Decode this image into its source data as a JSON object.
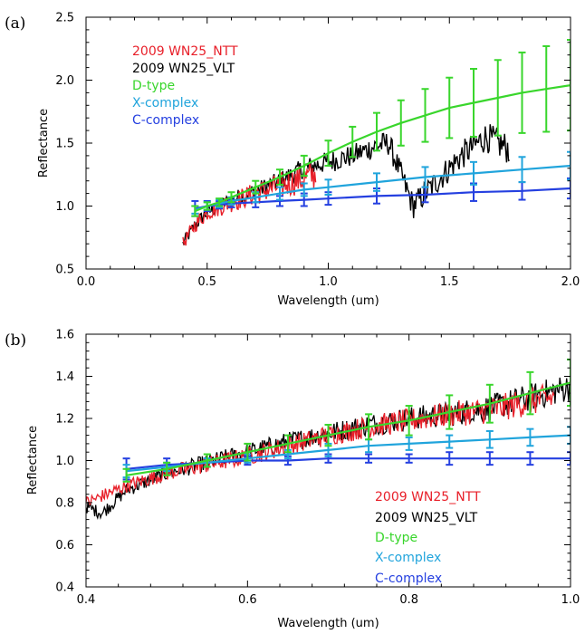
{
  "chart_data": [
    {
      "panel": "(a)",
      "type": "line",
      "xlabel": "Wavelength (um)",
      "ylabel": "Reflectance",
      "xlim": [
        0.0,
        2.0
      ],
      "ylim": [
        0.5,
        2.5
      ],
      "xticks": [
        "0.0",
        "0.5",
        "1.0",
        "1.5",
        "2.0"
      ],
      "yticks": [
        "0.5",
        "1.0",
        "1.5",
        "2.0",
        "2.5"
      ],
      "legend_position": "top-left",
      "series": [
        {
          "name": "2009 WN25_NTT",
          "color": "#e8202a",
          "kind": "noisy",
          "x": [
            0.4,
            0.45,
            0.5,
            0.6,
            0.7,
            0.8,
            0.9,
            0.95
          ],
          "y": [
            0.7,
            0.85,
            0.95,
            1.03,
            1.1,
            1.16,
            1.22,
            1.25
          ]
        },
        {
          "name": "2009 WN25_VLT",
          "color": "#000000",
          "kind": "noisy",
          "x": [
            0.4,
            0.45,
            0.5,
            0.6,
            0.7,
            0.8,
            0.9,
            1.0,
            1.1,
            1.2,
            1.25,
            1.35,
            1.55,
            1.65,
            1.75
          ],
          "y": [
            0.7,
            0.85,
            0.95,
            1.05,
            1.12,
            1.2,
            1.3,
            1.35,
            1.4,
            1.48,
            1.5,
            1.0,
            1.4,
            1.55,
            1.45
          ]
        },
        {
          "name": "D-type",
          "color": "#39d62c",
          "kind": "mean",
          "x": [
            0.45,
            0.5,
            0.55,
            0.6,
            0.7,
            0.8,
            0.9,
            1.0,
            1.1,
            1.2,
            1.3,
            1.4,
            1.5,
            1.6,
            1.7,
            1.8,
            1.9,
            2.0
          ],
          "y": [
            0.96,
            1.0,
            1.03,
            1.07,
            1.15,
            1.23,
            1.32,
            1.42,
            1.51,
            1.59,
            1.66,
            1.72,
            1.78,
            1.82,
            1.86,
            1.9,
            1.93,
            1.96
          ],
          "err": [
            0.04,
            0.03,
            0.03,
            0.04,
            0.05,
            0.06,
            0.08,
            0.1,
            0.12,
            0.15,
            0.18,
            0.21,
            0.24,
            0.27,
            0.3,
            0.32,
            0.34,
            0.36
          ]
        },
        {
          "name": "X-complex",
          "color": "#20a4dc",
          "kind": "mean",
          "x": [
            0.45,
            0.5,
            0.55,
            0.6,
            0.7,
            0.8,
            0.9,
            1.0,
            1.2,
            1.4,
            1.6,
            1.8,
            2.0
          ],
          "y": [
            0.97,
            1.0,
            1.02,
            1.04,
            1.07,
            1.1,
            1.13,
            1.15,
            1.19,
            1.23,
            1.26,
            1.29,
            1.32
          ],
          "err": [
            0.03,
            0.03,
            0.03,
            0.03,
            0.04,
            0.05,
            0.05,
            0.06,
            0.07,
            0.08,
            0.09,
            0.1,
            0.11
          ]
        },
        {
          "name": "C-complex",
          "color": "#2540e0",
          "kind": "mean",
          "x": [
            0.45,
            0.5,
            0.55,
            0.6,
            0.7,
            0.8,
            0.9,
            1.0,
            1.2,
            1.4,
            1.6,
            1.8,
            2.0
          ],
          "y": [
            0.98,
            1.0,
            1.01,
            1.02,
            1.03,
            1.04,
            1.05,
            1.06,
            1.08,
            1.09,
            1.11,
            1.12,
            1.14
          ],
          "err": [
            0.06,
            0.04,
            0.03,
            0.03,
            0.04,
            0.04,
            0.05,
            0.05,
            0.06,
            0.06,
            0.07,
            0.07,
            0.08
          ]
        }
      ]
    },
    {
      "panel": "(b)",
      "type": "line",
      "xlabel": "Wavelength (um)",
      "ylabel": "Reflectance",
      "xlim": [
        0.4,
        1.0
      ],
      "ylim": [
        0.4,
        1.6
      ],
      "xticks": [
        "0.4",
        "0.6",
        "0.8",
        "1.0"
      ],
      "yticks": [
        "0.4",
        "0.6",
        "0.8",
        "1.0",
        "1.2",
        "1.4",
        "1.6"
      ],
      "legend_position": "bottom-right",
      "series": [
        {
          "name": "2009 WN25_NTT",
          "color": "#e8202a",
          "kind": "noisy",
          "x": [
            0.4,
            0.45,
            0.5,
            0.55,
            0.6,
            0.65,
            0.7,
            0.75,
            0.8,
            0.85,
            0.9,
            0.95,
            0.98
          ],
          "y": [
            0.8,
            0.88,
            0.94,
            0.98,
            1.02,
            1.07,
            1.12,
            1.16,
            1.19,
            1.22,
            1.24,
            1.28,
            1.3
          ]
        },
        {
          "name": "2009 WN25_VLT",
          "color": "#000000",
          "kind": "noisy",
          "x": [
            0.4,
            0.42,
            0.45,
            0.5,
            0.55,
            0.6,
            0.65,
            0.7,
            0.75,
            0.8,
            0.85,
            0.9,
            0.95,
            1.0
          ],
          "y": [
            0.78,
            0.75,
            0.86,
            0.94,
            0.99,
            1.04,
            1.09,
            1.13,
            1.17,
            1.2,
            1.22,
            1.25,
            1.3,
            1.35
          ]
        },
        {
          "name": "D-type",
          "color": "#39d62c",
          "kind": "mean",
          "x": [
            0.45,
            0.5,
            0.55,
            0.6,
            0.65,
            0.7,
            0.75,
            0.8,
            0.85,
            0.9,
            0.95,
            1.0
          ],
          "y": [
            0.93,
            0.96,
            1.0,
            1.04,
            1.08,
            1.12,
            1.16,
            1.19,
            1.23,
            1.27,
            1.32,
            1.37
          ],
          "err": [
            0.03,
            0.03,
            0.03,
            0.04,
            0.04,
            0.05,
            0.06,
            0.07,
            0.08,
            0.09,
            0.1,
            0.11
          ]
        },
        {
          "name": "X-complex",
          "color": "#20a4dc",
          "kind": "mean",
          "x": [
            0.45,
            0.5,
            0.55,
            0.6,
            0.65,
            0.7,
            0.75,
            0.8,
            0.85,
            0.9,
            0.95,
            1.0
          ],
          "y": [
            0.95,
            0.97,
            0.99,
            1.01,
            1.03,
            1.05,
            1.07,
            1.08,
            1.09,
            1.1,
            1.11,
            1.12
          ],
          "err": [
            0.03,
            0.02,
            0.02,
            0.02,
            0.02,
            0.03,
            0.03,
            0.03,
            0.03,
            0.04,
            0.04,
            0.04
          ]
        },
        {
          "name": "C-complex",
          "color": "#2540e0",
          "kind": "mean",
          "x": [
            0.45,
            0.5,
            0.55,
            0.6,
            0.65,
            0.7,
            0.75,
            0.8,
            0.85,
            0.9,
            0.95,
            1.0
          ],
          "y": [
            0.96,
            0.98,
            0.99,
            1.0,
            1.0,
            1.01,
            1.01,
            1.01,
            1.01,
            1.01,
            1.01,
            1.01
          ],
          "err": [
            0.05,
            0.03,
            0.02,
            0.02,
            0.02,
            0.02,
            0.02,
            0.02,
            0.03,
            0.03,
            0.03,
            0.03
          ]
        }
      ]
    }
  ]
}
